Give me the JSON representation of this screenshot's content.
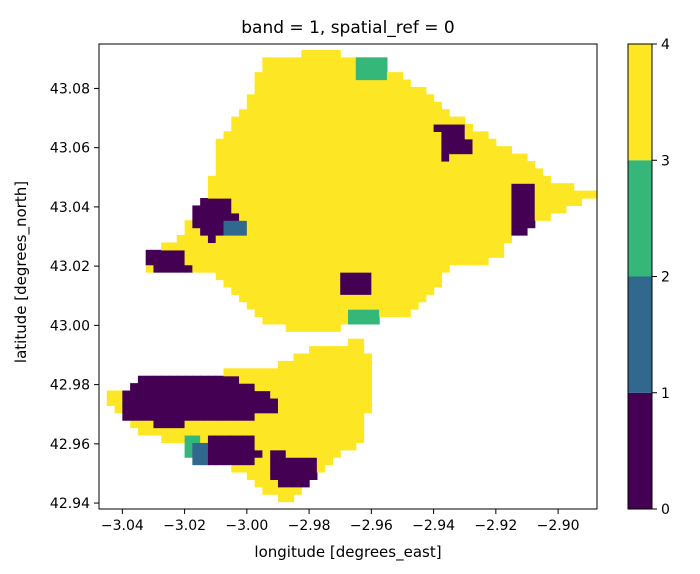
{
  "chart_data": {
    "type": "heatmap",
    "title": "band = 1, spatial_ref = 0",
    "xlabel": "longitude [degrees_east]",
    "ylabel": "latitude [degrees_north]",
    "xlim": [
      -3.0475,
      -2.8875
    ],
    "ylim": [
      42.938,
      43.095
    ],
    "x_ticks": [
      -3.04,
      -3.02,
      -3.0,
      -2.98,
      -2.96,
      -2.94,
      -2.92,
      -2.9
    ],
    "x_tick_labels": [
      "−3.04",
      "−3.02",
      "−3.00",
      "−2.98",
      "−2.96",
      "−2.94",
      "−2.92",
      "−2.90"
    ],
    "y_ticks": [
      42.94,
      42.96,
      42.98,
      43.0,
      43.02,
      43.04,
      43.06,
      43.08
    ],
    "y_tick_labels": [
      "42.94",
      "42.96",
      "42.98",
      "43.00",
      "43.02",
      "43.04",
      "43.06",
      "43.08"
    ],
    "colorbar": {
      "min": 0,
      "max": 4,
      "ticks": [
        0,
        1,
        2,
        3,
        4
      ],
      "tick_labels": [
        "0",
        "1",
        "2",
        "3",
        "4"
      ],
      "colors": [
        "#440154",
        "#31688e",
        "#35b779",
        "#fde725"
      ]
    },
    "cell_size": 0.0025,
    "regions": [
      {
        "class": 3,
        "points": [
          [
            -2.994,
            43.09
          ],
          [
            -2.975,
            43.093
          ],
          [
            -2.96,
            43.088
          ],
          [
            -2.948,
            43.083
          ],
          [
            -2.935,
            43.072
          ],
          [
            -2.925,
            43.065
          ],
          [
            -2.912,
            43.058
          ],
          [
            -2.9,
            43.048
          ],
          [
            -2.888,
            43.044
          ],
          [
            -2.9,
            43.038
          ],
          [
            -2.912,
            43.033
          ],
          [
            -2.92,
            43.022
          ],
          [
            -2.935,
            43.019
          ],
          [
            -2.946,
            43.005
          ],
          [
            -2.962,
            43.0
          ],
          [
            -2.98,
            42.998
          ],
          [
            -2.994,
            43.0
          ],
          [
            -3.004,
            43.01
          ],
          [
            -3.012,
            43.018
          ],
          [
            -3.032,
            43.018
          ],
          [
            -3.034,
            43.024
          ],
          [
            -3.022,
            43.03
          ],
          [
            -3.012,
            43.045
          ],
          [
            -3.01,
            43.06
          ],
          [
            -3.0,
            43.075
          ]
        ]
      },
      {
        "class": 3,
        "points": [
          [
            -2.976,
            42.993
          ],
          [
            -2.962,
            42.995
          ],
          [
            -2.96,
            42.985
          ],
          [
            -2.962,
            42.962
          ],
          [
            -2.975,
            42.952
          ],
          [
            -2.982,
            42.944
          ],
          [
            -2.988,
            42.94
          ],
          [
            -3.002,
            42.95
          ],
          [
            -3.02,
            42.96
          ],
          [
            -3.035,
            42.963
          ],
          [
            -3.046,
            42.976
          ],
          [
            -3.03,
            42.982
          ],
          [
            -3.01,
            42.984
          ],
          [
            -2.992,
            42.986
          ]
        ]
      },
      {
        "class": 0,
        "points": [
          [
            -3.034,
            42.983
          ],
          [
            -3.005,
            42.983
          ],
          [
            -2.99,
            42.976
          ],
          [
            -2.99,
            42.97
          ],
          [
            -3.01,
            42.968
          ],
          [
            -3.025,
            42.966
          ],
          [
            -3.04,
            42.968
          ],
          [
            -3.04,
            42.977
          ]
        ]
      },
      {
        "class": 0,
        "points": [
          [
            -3.012,
            42.962
          ],
          [
            -2.998,
            42.962
          ],
          [
            -2.994,
            42.955
          ],
          [
            -3.004,
            42.952
          ],
          [
            -3.014,
            42.955
          ]
        ]
      },
      {
        "class": 0,
        "points": [
          [
            -2.992,
            42.957
          ],
          [
            -2.978,
            42.956
          ],
          [
            -2.978,
            42.948
          ],
          [
            -2.985,
            42.944
          ],
          [
            -2.992,
            42.948
          ]
        ]
      },
      {
        "class": 0,
        "points": [
          [
            -3.015,
            43.043
          ],
          [
            -3.005,
            43.043
          ],
          [
            -3.002,
            43.032
          ],
          [
            -3.012,
            43.029
          ],
          [
            -3.018,
            43.035
          ]
        ]
      },
      {
        "class": 0,
        "points": [
          [
            -3.033,
            43.025
          ],
          [
            -3.02,
            43.026
          ],
          [
            -3.018,
            43.018
          ],
          [
            -3.03,
            43.017
          ]
        ]
      },
      {
        "class": 0,
        "points": [
          [
            -2.939,
            43.068
          ],
          [
            -2.93,
            43.068
          ],
          [
            -2.928,
            43.058
          ],
          [
            -2.938,
            43.056
          ]
        ]
      },
      {
        "class": 0,
        "points": [
          [
            -2.916,
            43.048
          ],
          [
            -2.908,
            43.047
          ],
          [
            -2.908,
            43.032
          ],
          [
            -2.916,
            43.031
          ]
        ]
      },
      {
        "class": 0,
        "points": [
          [
            -2.97,
            43.017
          ],
          [
            -2.96,
            43.017
          ],
          [
            -2.96,
            43.01
          ],
          [
            -2.97,
            43.01
          ]
        ]
      },
      {
        "class": 2,
        "points": [
          [
            -2.965,
            43.09
          ],
          [
            -2.955,
            43.09
          ],
          [
            -2.955,
            43.082
          ],
          [
            -2.965,
            43.082
          ]
        ]
      },
      {
        "class": 2,
        "points": [
          [
            -3.02,
            42.962
          ],
          [
            -3.014,
            42.962
          ],
          [
            -3.014,
            42.955
          ],
          [
            -3.02,
            42.955
          ]
        ]
      },
      {
        "class": 2,
        "points": [
          [
            -2.968,
            43.006
          ],
          [
            -2.958,
            43.006
          ],
          [
            -2.958,
            43.0
          ],
          [
            -2.968,
            43.0
          ]
        ]
      },
      {
        "class": 1,
        "points": [
          [
            -3.018,
            42.96
          ],
          [
            -3.012,
            42.96
          ],
          [
            -3.012,
            42.954
          ],
          [
            -3.018,
            42.954
          ]
        ]
      },
      {
        "class": 1,
        "points": [
          [
            -3.008,
            43.035
          ],
          [
            -3.0,
            43.035
          ],
          [
            -3.0,
            43.03
          ],
          [
            -3.008,
            43.03
          ]
        ]
      }
    ]
  }
}
